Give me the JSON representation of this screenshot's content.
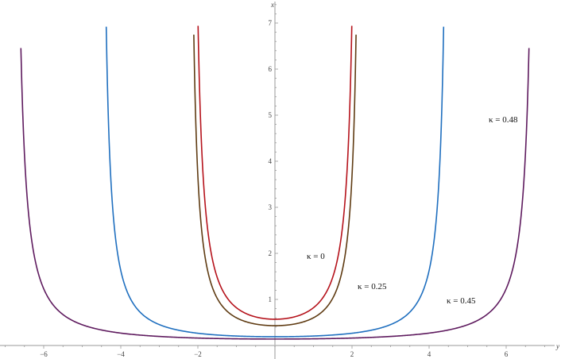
{
  "chart_data": {
    "type": "line",
    "xlabel": "y",
    "ylabel": "x",
    "xlim": [
      -7.1,
      7.3
    ],
    "ylim": [
      0,
      7.5
    ],
    "x_ticks": [
      -6,
      -4,
      -2,
      2,
      4,
      6
    ],
    "y_ticks": [
      1,
      2,
      3,
      4,
      5,
      6,
      7
    ],
    "grid": false,
    "series": [
      {
        "name": "κ = 0",
        "color": "#b5121b",
        "minimum_x": 0.57,
        "asymptote_y": 2.2
      },
      {
        "name": "κ = 0.25",
        "color": "#5f3b12",
        "minimum_x": 0.43,
        "asymptote_y": 2.28
      },
      {
        "name": "κ = 0.45",
        "color": "#1f6fbf",
        "minimum_x": 0.19,
        "asymptote_y": 4.56
      },
      {
        "name": "κ = 0.48",
        "color": "#5e1a5e",
        "minimum_x": 0.14,
        "asymptote_y": 6.82
      }
    ]
  }
}
